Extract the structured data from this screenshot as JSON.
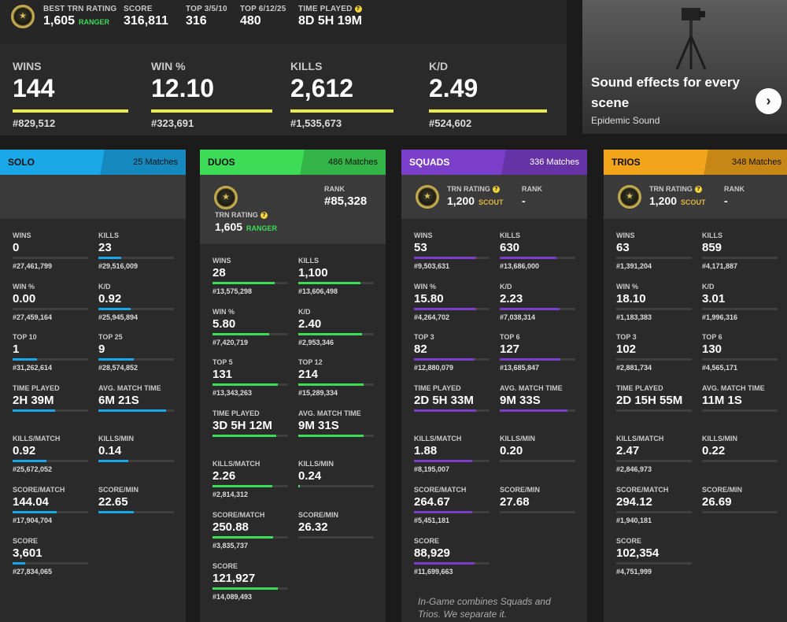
{
  "header": {
    "emblem_icon": "trn-ranger-emblem-icon",
    "best_trn_label": "BEST TRN RATING",
    "best_trn_value": "1,605",
    "best_trn_rank": "RANGER",
    "score_label": "SCORE",
    "score_value": "316,811",
    "top_a_label": "TOP 3/5/10",
    "top_a_value": "316",
    "top_b_label": "TOP 6/12/25",
    "top_b_value": "480",
    "time_label": "TIME PLAYED",
    "time_value": "8D 5H 19M"
  },
  "overview": [
    {
      "label": "WINS",
      "value": "144",
      "rank": "#829,512",
      "fill": 0.92
    },
    {
      "label": "WIN %",
      "value": "12.10",
      "rank": "#323,691",
      "fill": 0.96
    },
    {
      "label": "KILLS",
      "value": "2,612",
      "rank": "#1,535,673",
      "fill": 0.82
    },
    {
      "label": "K/D",
      "value": "2.49",
      "rank": "#524,602",
      "fill": 0.94
    }
  ],
  "ad": {
    "title": "Sound effects for every scene",
    "sponsor": "Epidemic Sound",
    "next_icon": "chevron-right-icon"
  },
  "panels": [
    {
      "name": "SOLO",
      "matches": "25 Matches",
      "color": "#1aa7e8",
      "stats": [
        {
          "label": "WINS",
          "value": "0",
          "rank": "#27,461,799",
          "fill": 0.0
        },
        {
          "label": "KILLS",
          "value": "23",
          "rank": "#29,516,009",
          "fill": 0.32
        },
        {
          "label": "WIN %",
          "value": "0.00",
          "rank": "#27,459,164",
          "fill": 0.0
        },
        {
          "label": "K/D",
          "value": "0.92",
          "rank": "#25,945,894",
          "fill": 0.46
        },
        {
          "label": "TOP 10",
          "value": "1",
          "rank": "#31,262,614",
          "fill": 0.35
        },
        {
          "label": "TOP 25",
          "value": "9",
          "rank": "#28,574,852",
          "fill": 0.5
        },
        {
          "label": "TIME PLAYED",
          "value": "2H 39M",
          "rank": "",
          "fill": 0.6
        },
        {
          "label": "AVG. MATCH TIME",
          "value": "6M 21S",
          "rank": "",
          "fill": 0.95
        },
        {
          "label": "KILLS/MATCH",
          "value": "0.92",
          "rank": "#25,672,052",
          "fill": 0.48
        },
        {
          "label": "KILLS/MIN",
          "value": "0.14",
          "rank": "",
          "fill": 0.42
        },
        {
          "label": "SCORE/MATCH",
          "value": "144.04",
          "rank": "#17,904,704",
          "fill": 0.62
        },
        {
          "label": "SCORE/MIN",
          "value": "22.65",
          "rank": "",
          "fill": 0.5
        },
        {
          "label": "SCORE",
          "value": "3,601",
          "rank": "#27,834,065",
          "fill": 0.18
        }
      ]
    },
    {
      "name": "DUOS",
      "matches": "486 Matches",
      "color": "#3ddc56",
      "trn_label": "TRN RATING",
      "trn_value": "1,605",
      "trn_rank": "RANGER",
      "rank_label": "RANK",
      "rank_value": "#85,328",
      "stats": [
        {
          "label": "WINS",
          "value": "28",
          "rank": "#13,575,298",
          "fill": 0.88
        },
        {
          "label": "KILLS",
          "value": "1,100",
          "rank": "#13,606,498",
          "fill": 0.88
        },
        {
          "label": "WIN %",
          "value": "5.80",
          "rank": "#7,420,719",
          "fill": 0.8
        },
        {
          "label": "K/D",
          "value": "2.40",
          "rank": "#2,953,346",
          "fill": 0.9
        },
        {
          "label": "TOP 5",
          "value": "131",
          "rank": "#13,343,263",
          "fill": 0.92
        },
        {
          "label": "TOP 12",
          "value": "214",
          "rank": "#15,289,334",
          "fill": 0.92
        },
        {
          "label": "TIME PLAYED",
          "value": "3D 5H 12M",
          "rank": "",
          "fill": 0.9
        },
        {
          "label": "AVG. MATCH TIME",
          "value": "9M 31S",
          "rank": "",
          "fill": 0.92
        },
        {
          "label": "KILLS/MATCH",
          "value": "2.26",
          "rank": "#2,814,312",
          "fill": 0.84
        },
        {
          "label": "KILLS/MIN",
          "value": "0.24",
          "rank": "",
          "fill": 0.02
        },
        {
          "label": "SCORE/MATCH",
          "value": "250.88",
          "rank": "#3,835,737",
          "fill": 0.86
        },
        {
          "label": "SCORE/MIN",
          "value": "26.32",
          "rank": "",
          "fill": 0.0
        },
        {
          "label": "SCORE",
          "value": "121,927",
          "rank": "#14,089,493",
          "fill": 0.92
        }
      ]
    },
    {
      "name": "SQUADS",
      "matches": "336 Matches",
      "color": "#7b3ec9",
      "trn_label": "TRN RATING",
      "trn_value": "1,200",
      "trn_rank": "SCOUT",
      "rank_label": "RANK",
      "rank_value": "-",
      "stats": [
        {
          "label": "WINS",
          "value": "53",
          "rank": "#9,503,631",
          "fill": 0.88
        },
        {
          "label": "KILLS",
          "value": "630",
          "rank": "#13,686,000",
          "fill": 0.8
        },
        {
          "label": "WIN %",
          "value": "15.80",
          "rank": "#4,264,702",
          "fill": 0.88
        },
        {
          "label": "K/D",
          "value": "2.23",
          "rank": "#7,038,314",
          "fill": 0.84
        },
        {
          "label": "TOP 3",
          "value": "82",
          "rank": "#12,880,079",
          "fill": 0.86
        },
        {
          "label": "TOP 6",
          "value": "127",
          "rank": "#13,685,847",
          "fill": 0.85
        },
        {
          "label": "TIME PLAYED",
          "value": "2D 5H 33M",
          "rank": "",
          "fill": 0.88
        },
        {
          "label": "AVG. MATCH TIME",
          "value": "9M 33S",
          "rank": "",
          "fill": 0.95
        },
        {
          "label": "KILLS/MATCH",
          "value": "1.88",
          "rank": "#8,195,007",
          "fill": 0.82
        },
        {
          "label": "KILLS/MIN",
          "value": "0.20",
          "rank": "",
          "fill": 0.0
        },
        {
          "label": "SCORE/MATCH",
          "value": "264.67",
          "rank": "#5,451,181",
          "fill": 0.82
        },
        {
          "label": "SCORE/MIN",
          "value": "27.68",
          "rank": "",
          "fill": 0.0
        },
        {
          "label": "SCORE",
          "value": "88,929",
          "rank": "#11,699,663",
          "fill": 0.86
        }
      ],
      "note": "In-Game combines Squads and Trios. We separate it."
    },
    {
      "name": "TRIOS",
      "matches": "348 Matches",
      "color": "#f2a51a",
      "trn_label": "TRN RATING",
      "trn_value": "1,200",
      "trn_rank": "SCOUT",
      "rank_label": "RANK",
      "rank_value": "-",
      "stats": [
        {
          "label": "WINS",
          "value": "63",
          "rank": "#1,391,204",
          "fill": 0.0
        },
        {
          "label": "KILLS",
          "value": "859",
          "rank": "#4,171,887",
          "fill": 0.0
        },
        {
          "label": "WIN %",
          "value": "18.10",
          "rank": "#1,183,383",
          "fill": 0.0
        },
        {
          "label": "K/D",
          "value": "3.01",
          "rank": "#1,996,316",
          "fill": 0.0
        },
        {
          "label": "TOP 3",
          "value": "102",
          "rank": "#2,881,734",
          "fill": 0.0
        },
        {
          "label": "TOP 6",
          "value": "130",
          "rank": "#4,565,171",
          "fill": 0.0
        },
        {
          "label": "TIME PLAYED",
          "value": "2D 15H 55M",
          "rank": "",
          "fill": 0.0
        },
        {
          "label": "AVG. MATCH TIME",
          "value": "11M 1S",
          "rank": "",
          "fill": 0.0
        },
        {
          "label": "KILLS/MATCH",
          "value": "2.47",
          "rank": "#2,846,973",
          "fill": 0.0
        },
        {
          "label": "KILLS/MIN",
          "value": "0.22",
          "rank": "",
          "fill": 0.0
        },
        {
          "label": "SCORE/MATCH",
          "value": "294.12",
          "rank": "#1,940,181",
          "fill": 0.0
        },
        {
          "label": "SCORE/MIN",
          "value": "26.69",
          "rank": "",
          "fill": 0.0
        },
        {
          "label": "SCORE",
          "value": "102,354",
          "rank": "#4,751,999",
          "fill": 0.0
        }
      ]
    }
  ]
}
